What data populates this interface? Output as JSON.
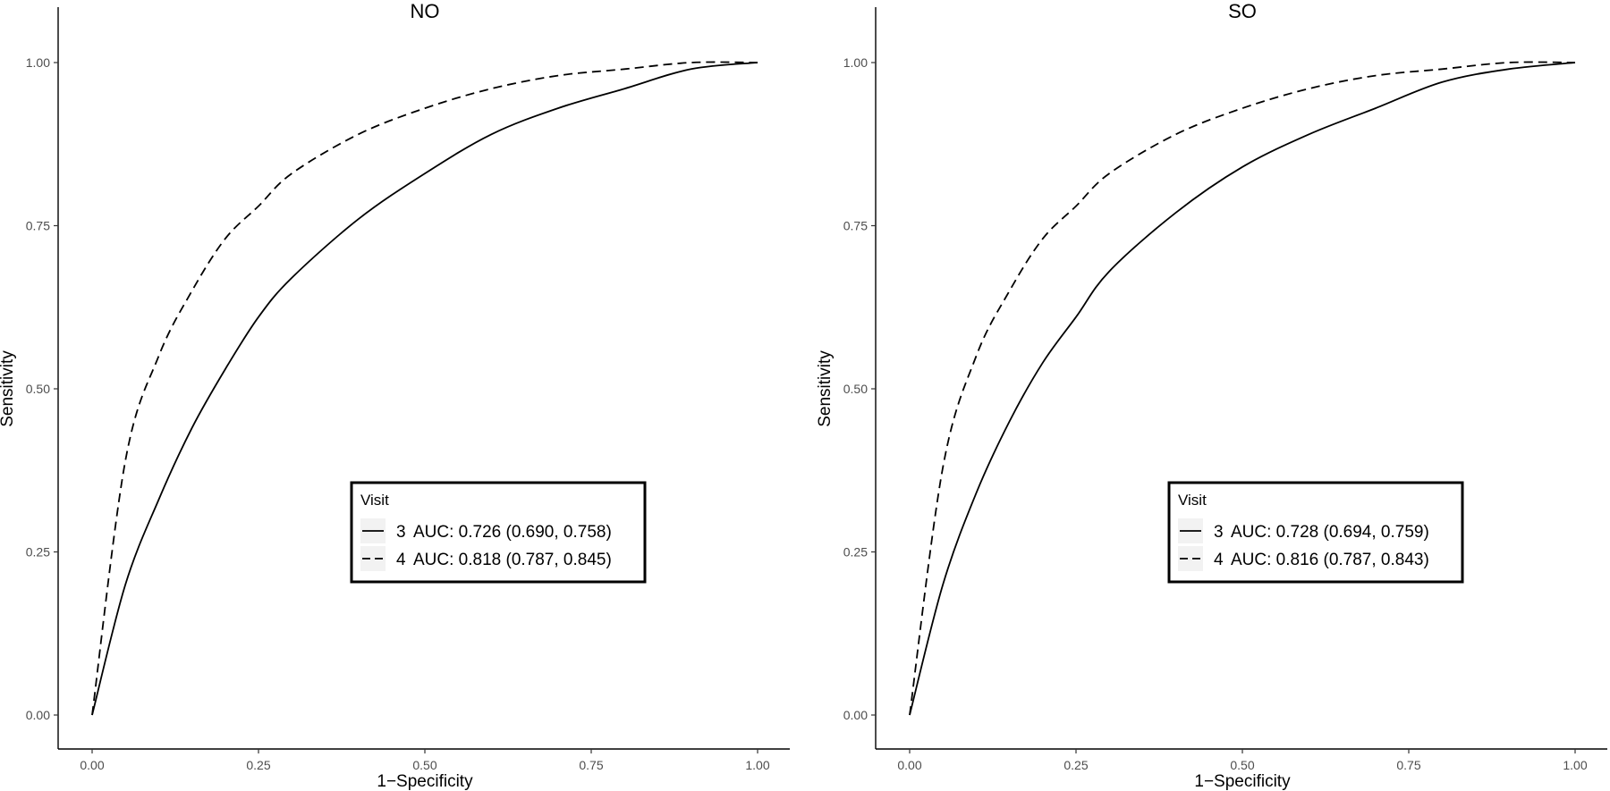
{
  "chart_data": [
    {
      "type": "line",
      "title": "NO",
      "xlabel": "1−Specificity",
      "ylabel": "Sensitivity",
      "xlim": [
        0,
        1
      ],
      "ylim": [
        0,
        1
      ],
      "x_ticks": [
        "0.00",
        "0.25",
        "0.50",
        "0.75",
        "1.00"
      ],
      "y_ticks": [
        "0.00",
        "0.25",
        "0.50",
        "0.75",
        "1.00"
      ],
      "grid": false,
      "legend": {
        "title": "Visit",
        "placement": "center-right",
        "entries": [
          {
            "key": "3",
            "label": "AUC: 0.726 (0.690, 0.758)",
            "linestyle": "solid"
          },
          {
            "key": "4",
            "label": "AUC: 0.818 (0.787, 0.845)",
            "linestyle": "dashed"
          }
        ]
      },
      "series": [
        {
          "name": "3",
          "linestyle": "solid",
          "x": [
            0.0,
            0.05,
            0.1,
            0.15,
            0.2,
            0.25,
            0.3,
            0.4,
            0.5,
            0.6,
            0.7,
            0.8,
            0.9,
            1.0
          ],
          "y": [
            0.0,
            0.2,
            0.33,
            0.44,
            0.53,
            0.61,
            0.67,
            0.76,
            0.83,
            0.89,
            0.93,
            0.96,
            0.99,
            1.0
          ]
        },
        {
          "name": "4",
          "linestyle": "dashed",
          "x": [
            0.0,
            0.05,
            0.1,
            0.15,
            0.2,
            0.25,
            0.3,
            0.4,
            0.5,
            0.6,
            0.7,
            0.8,
            0.9,
            1.0
          ],
          "y": [
            0.0,
            0.39,
            0.55,
            0.65,
            0.73,
            0.78,
            0.83,
            0.89,
            0.93,
            0.96,
            0.98,
            0.99,
            1.0,
            1.0
          ]
        }
      ]
    },
    {
      "type": "line",
      "title": "SO",
      "xlabel": "1−Specificity",
      "ylabel": "Sensitivity",
      "xlim": [
        0,
        1
      ],
      "ylim": [
        0,
        1
      ],
      "x_ticks": [
        "0.00",
        "0.25",
        "0.50",
        "0.75",
        "1.00"
      ],
      "y_ticks": [
        "0.00",
        "0.25",
        "0.50",
        "0.75",
        "1.00"
      ],
      "grid": false,
      "legend": {
        "title": "Visit",
        "placement": "center-right",
        "entries": [
          {
            "key": "3",
            "label": "AUC: 0.728 (0.694, 0.759)",
            "linestyle": "solid"
          },
          {
            "key": "4",
            "label": "AUC: 0.816 (0.787, 0.843)",
            "linestyle": "dashed"
          }
        ]
      },
      "series": [
        {
          "name": "3",
          "linestyle": "solid",
          "x": [
            0.0,
            0.05,
            0.1,
            0.15,
            0.2,
            0.25,
            0.3,
            0.4,
            0.5,
            0.6,
            0.7,
            0.8,
            0.9,
            1.0
          ],
          "y": [
            0.0,
            0.2,
            0.34,
            0.45,
            0.54,
            0.61,
            0.68,
            0.77,
            0.84,
            0.89,
            0.93,
            0.97,
            0.99,
            1.0
          ]
        },
        {
          "name": "4",
          "linestyle": "dashed",
          "x": [
            0.0,
            0.05,
            0.1,
            0.15,
            0.2,
            0.25,
            0.3,
            0.4,
            0.5,
            0.6,
            0.7,
            0.8,
            0.9,
            1.0
          ],
          "y": [
            0.0,
            0.38,
            0.55,
            0.65,
            0.73,
            0.78,
            0.83,
            0.89,
            0.93,
            0.96,
            0.98,
            0.99,
            1.0,
            1.0
          ]
        }
      ]
    }
  ]
}
